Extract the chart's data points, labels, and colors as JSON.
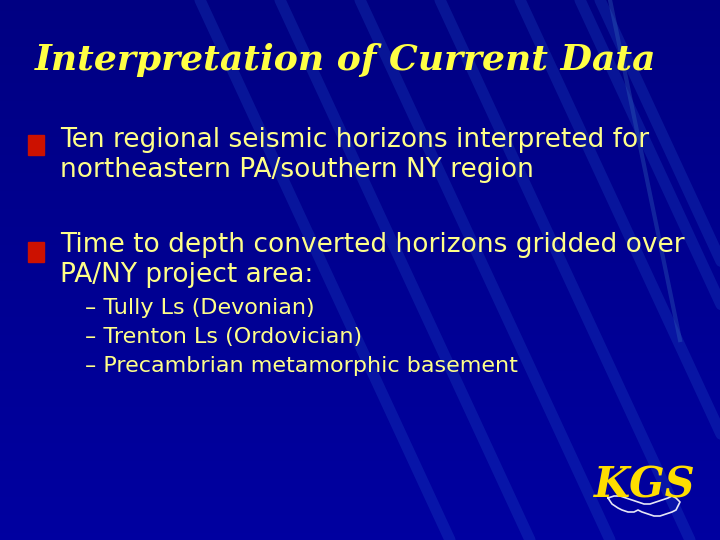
{
  "title": "Interpretation of Current Data",
  "title_color": "#FFFF44",
  "title_fontsize": 26,
  "background_color": "#000099",
  "bg_gradient_top": "#0000BB",
  "bg_gradient_bot": "#000077",
  "bullet_color": "#CC1100",
  "text_color": "#FFFF88",
  "bullet1_line1": "Ten regional seismic horizons interpreted for",
  "bullet1_line2": "northeastern PA/southern NY region",
  "bullet2_line1": "Time to depth converted horizons gridded over",
  "bullet2_line2": "PA/NY project area:",
  "sub_bullets": [
    "– Tully Ls (Devonian)",
    "– Trenton Ls (Ordovician)",
    "– Precambrian metamorphic basement"
  ],
  "bullet_text_fontsize": 19,
  "sub_bullet_fontsize": 16,
  "kgs_text": "KGS",
  "kgs_color": "#FFDD00",
  "kgs_fontsize": 30
}
